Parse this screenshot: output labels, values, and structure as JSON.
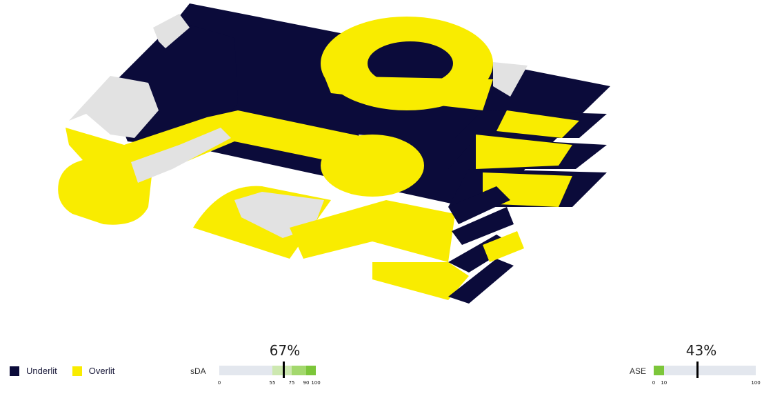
{
  "legend": {
    "underlit": {
      "label": "Underlit",
      "color": "#0b0b3a"
    },
    "overlit": {
      "label": "Overlit",
      "color": "#f9ec00"
    }
  },
  "metrics": {
    "sda": {
      "label": "sDA",
      "value_text": "67%",
      "value": 67,
      "ticks": [
        "0",
        "55",
        "75",
        "90",
        "100"
      ],
      "ranges": [
        {
          "from": 55,
          "to": 75,
          "color": "#cde8b0"
        },
        {
          "from": 75,
          "to": 90,
          "color": "#a3d86d"
        },
        {
          "from": 90,
          "to": 100,
          "color": "#7cc63a"
        }
      ]
    },
    "ase": {
      "label": "ASE",
      "value_text": "43%",
      "value": 43,
      "ticks": [
        "0",
        "10",
        "100"
      ],
      "ranges": [
        {
          "from": 0,
          "to": 10,
          "color": "#7cc63a"
        }
      ]
    }
  },
  "floorplan": {
    "colors": {
      "underlit": "#0b0b3a",
      "overlit": "#f9ec00",
      "neutral": "#e2e2e2",
      "shade": "#cfc400"
    }
  }
}
